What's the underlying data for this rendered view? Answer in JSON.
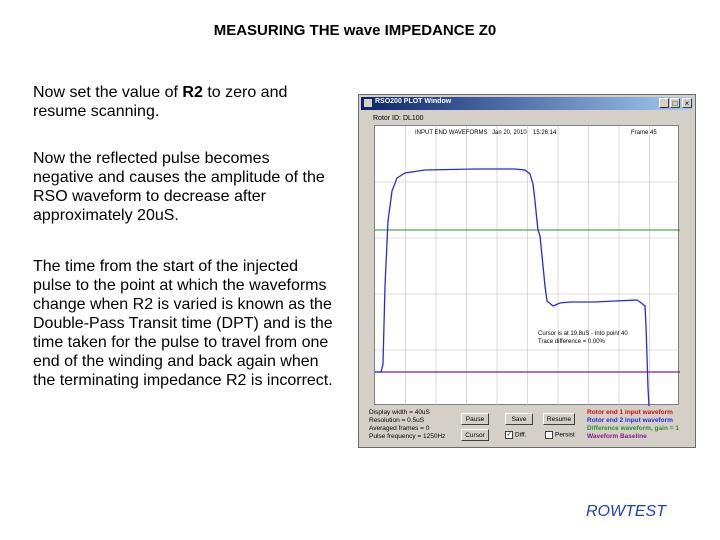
{
  "slide": {
    "title": "MEASURING THE wave IMPEDANCE Z0",
    "paragraph1_pre": "Now set the value of ",
    "paragraph1_bold": "R2",
    "paragraph1_post": " to zero and resume scanning.",
    "paragraph2": "Now the reflected pulse becomes negative and causes the amplitude of the RSO waveform to decrease after approximately 20uS.",
    "paragraph3": "The time from the start of the injected pulse to the point at which the waveforms change when R2 is varied is known as the Double-Pass Transit time (DPT) and is the time taken for the pulse to travel from one end of the winding and back again when the terminating impedance R2 is incorrect.",
    "brand": "ROWTEST"
  },
  "window": {
    "title": "RSO200 PLOT Window",
    "minimize": "_",
    "maximize": "□",
    "close": "×",
    "rotor_id": "Rotor ID: DL100",
    "plot_header": "INPUT END WAVEFORMS",
    "date": "Jan 20, 2010",
    "time": "15:26:14",
    "frame": "Frame 45",
    "cursor_text": "Cursor is at 19.8uS - Into point 40",
    "trace_diff": "Trace difference = 0.00%",
    "buttons": {
      "pause": "Pause",
      "save": "Save",
      "resume": "Resume",
      "cursor": "Cursor"
    },
    "checkboxes": {
      "diff": "Diff.",
      "persist": "Persist"
    },
    "info": {
      "display_width": "Display width = 40uS",
      "resolution": "Resolution = 0.5uS",
      "averaged": "Averaged frames = 0",
      "pulse_freq": "Pulse frequency = 1250Hz"
    },
    "legend": {
      "rotor_end_1": "Rotor end 1 input waveform",
      "rotor_end_2": "Rotor end 2 input waveform",
      "difference": "Difference waveform, gain = 1",
      "baseline": "Waveform Baseline"
    }
  },
  "colors": {
    "waveform": "#2a2ad8",
    "difference": "#2e8b2e",
    "baseline": "#8b1a8b",
    "rotor_end_1": "#d01010",
    "rotor_end_2": "#2a2ad8",
    "grid": "#c0c0c0",
    "brand": "#1f3dc8"
  }
}
